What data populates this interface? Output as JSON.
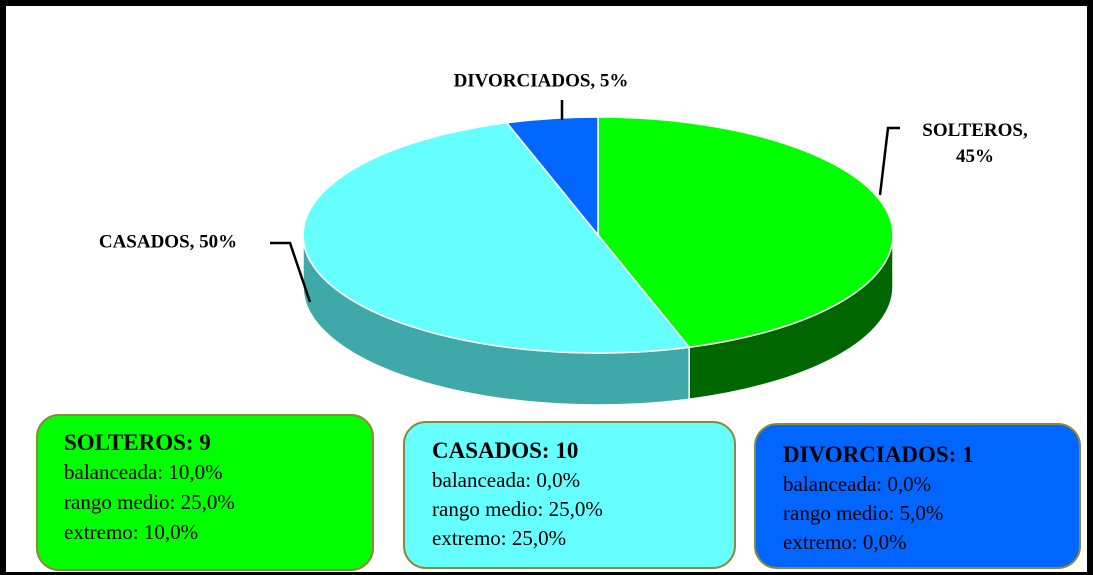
{
  "chart_data": {
    "type": "pie",
    "labels": [
      "SOLTEROS, 45%",
      "CASADOS, 50%",
      "DIVORCIADOS, 5%"
    ],
    "values": [
      45,
      50,
      5
    ],
    "colors": [
      "#00ff00",
      "#66ffff",
      "#0066ff"
    ],
    "side_colors": [
      "#006600",
      "#3fa9a9",
      "#003f9f"
    ]
  },
  "boxes": [
    {
      "title": "SOLTEROS: 9",
      "lines": [
        "balanceada: 10,0%",
        "rango medio: 25,0%",
        "extremo: 10,0%"
      ]
    },
    {
      "title": "CASADOS: 10",
      "lines": [
        "balanceada: 0,0%",
        "rango medio: 25,0%",
        "extremo: 25,0%"
      ]
    },
    {
      "title": "DIVORCIADOS: 1",
      "lines": [
        "balanceada: 0,0%",
        "rango medio: 5,0%",
        "extremo: 0,0%"
      ]
    }
  ]
}
